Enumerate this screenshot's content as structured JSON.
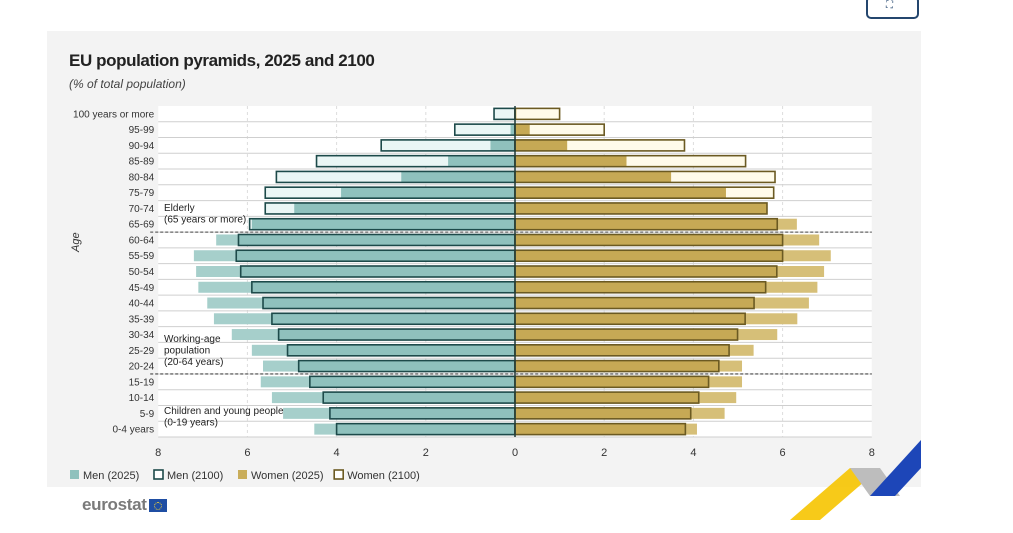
{
  "chart_data": {
    "type": "bar",
    "orientation": "horizontal-population-pyramid",
    "title": "EU population pyramids, 2025 and 2100",
    "subtitle": "(% of total population)",
    "ylabel": "Age",
    "xlim": [
      -8,
      8
    ],
    "x_ticks": [
      "8",
      "6",
      "4",
      "2",
      "0",
      "2",
      "4",
      "6",
      "8"
    ],
    "grid": true,
    "legend_placement": "bottom-left",
    "categories": [
      "100 years or more",
      "95-99",
      "90-94",
      "85-89",
      "80-84",
      "75-79",
      "70-74",
      "65-69",
      "60-64",
      "55-59",
      "50-54",
      "45-49",
      "40-44",
      "35-39",
      "30-34",
      "25-29",
      "20-24",
      "15-19",
      "10-14",
      "5-9",
      "0-4 years"
    ],
    "series": [
      {
        "name": "Men (2025)",
        "color": "#8fc1bd",
        "values": [
          0.02,
          0.1,
          0.55,
          1.5,
          2.55,
          3.9,
          4.95,
          5.9,
          6.7,
          7.2,
          7.15,
          7.1,
          6.9,
          6.75,
          6.35,
          5.9,
          5.65,
          5.7,
          5.45,
          5.2,
          4.5
        ]
      },
      {
        "name": "Men (2100)",
        "color": "#1d4a4a",
        "values": [
          0.47,
          1.35,
          3.0,
          4.45,
          5.35,
          5.6,
          5.6,
          5.95,
          6.2,
          6.25,
          6.15,
          5.9,
          5.65,
          5.45,
          5.3,
          5.1,
          4.85,
          4.6,
          4.3,
          4.15,
          4.0
        ]
      },
      {
        "name": "Women (2025)",
        "color": "#c9ad5a",
        "values": [
          0.03,
          0.33,
          1.17,
          2.5,
          3.5,
          4.73,
          5.65,
          6.32,
          6.82,
          7.08,
          6.93,
          6.78,
          6.59,
          6.33,
          5.88,
          5.35,
          5.09,
          5.09,
          4.96,
          4.7,
          4.08
        ]
      },
      {
        "name": "Women (2100)",
        "color": "#6b5a22",
        "values": [
          1.0,
          2.0,
          3.8,
          5.17,
          5.83,
          5.8,
          5.65,
          5.88,
          6.0,
          6.0,
          5.87,
          5.62,
          5.36,
          5.16,
          4.99,
          4.8,
          4.57,
          4.34,
          4.12,
          3.94,
          3.82
        ]
      }
    ],
    "annotations": [
      {
        "lines": [
          "Elderly",
          "(65 years or more)"
        ]
      },
      {
        "lines": [
          "Working-age",
          "population",
          "(20-64 years)"
        ]
      },
      {
        "lines": [
          "Children and young people",
          "(0-19 years)"
        ]
      }
    ]
  },
  "branding": {
    "logo_text": "eurostat"
  },
  "expand_icon": "expand-icon"
}
